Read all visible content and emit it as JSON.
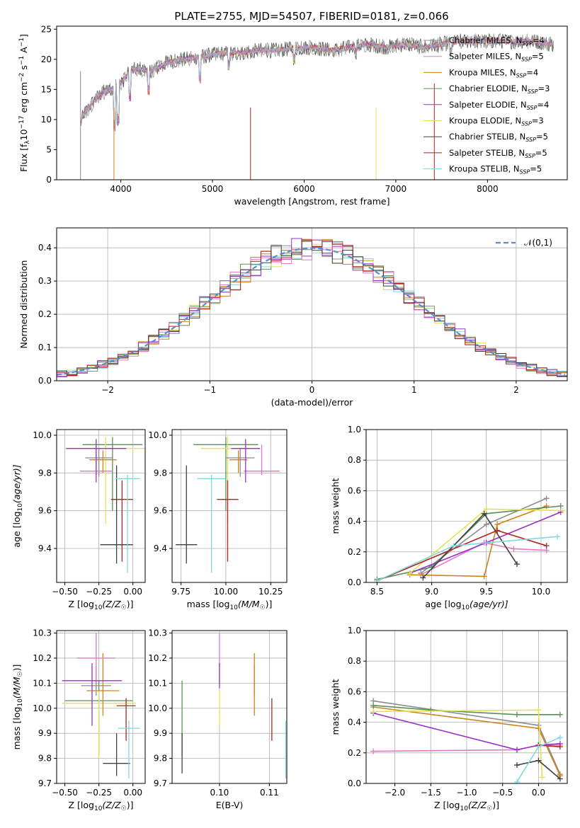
{
  "figure": {
    "title": "PLATE=2755, MJD=54507, FIBERID=0181, z=0.066"
  },
  "series_styles": [
    {
      "label_main": "Chabrier MILES",
      "nssp": "4",
      "color": "#8c8c8c"
    },
    {
      "label_main": "Salpeter MILES",
      "nssp": "5",
      "color": "#e377c2"
    },
    {
      "label_main": "Kroupa MILES",
      "nssp": "4",
      "color": "#d0821a"
    },
    {
      "label_main": "Chabrier ELODIE",
      "nssp": "3",
      "color": "#5a8f5a"
    },
    {
      "label_main": "Salpeter ELODIE",
      "nssp": "4",
      "color": "#9b30c8"
    },
    {
      "label_main": "Kroupa ELODIE",
      "nssp": "3",
      "color": "#e5e05a"
    },
    {
      "label_main": "Chabrier STELIB",
      "nssp": "5",
      "color": "#404040"
    },
    {
      "label_main": "Salpeter STELIB",
      "nssp": "5",
      "color": "#b22222"
    },
    {
      "label_main": "Kroupa STELIB",
      "nssp": "5",
      "color": "#7fd8e0"
    }
  ],
  "chart_data": [
    {
      "id": "spectrum",
      "type": "line",
      "xlabel": "wavelength [Angstrom, rest frame]",
      "ylabel_pre": "Flux [f",
      "ylabel_sub": "λ",
      "ylabel_mid": "10",
      "ylabel_sup1": "−17",
      "ylabel_mid2": " erg cm",
      "ylabel_sup2": "−2",
      "ylabel_mid3": " s",
      "ylabel_sup3": "−1",
      "ylabel_mid4": " A",
      "ylabel_sup4": "−1",
      "ylabel_end": "]",
      "xlim": [
        3300,
        8870
      ],
      "ylim": [
        0,
        25.5
      ],
      "xticks": [
        "4000",
        "5000",
        "6000",
        "7000",
        "8000"
      ],
      "xtick_values": [
        4000,
        5000,
        6000,
        7000,
        8000
      ],
      "yticks": [
        "0",
        "5",
        "10",
        "15",
        "20",
        "25"
      ],
      "ytick_values": [
        0,
        5,
        10,
        15,
        20,
        25
      ],
      "envelope": [
        [
          3560,
          9.5
        ],
        [
          3600,
          11
        ],
        [
          3700,
          13
        ],
        [
          3800,
          14.5
        ],
        [
          3900,
          15
        ],
        [
          4000,
          16
        ],
        [
          4100,
          18
        ],
        [
          4200,
          18.5
        ],
        [
          4300,
          18
        ],
        [
          4400,
          18.5
        ],
        [
          4500,
          19.5
        ],
        [
          4700,
          20
        ],
        [
          4900,
          20.5
        ],
        [
          5100,
          21
        ],
        [
          5300,
          21
        ],
        [
          5500,
          21.5
        ],
        [
          5700,
          21.5
        ],
        [
          5900,
          21.8
        ],
        [
          6100,
          22
        ],
        [
          6300,
          21.5
        ],
        [
          6500,
          22
        ],
        [
          6700,
          22.5
        ],
        [
          6900,
          22
        ],
        [
          7100,
          22.5
        ],
        [
          7300,
          22
        ],
        [
          7500,
          22.5
        ],
        [
          7700,
          23
        ],
        [
          7900,
          23
        ],
        [
          8100,
          23
        ],
        [
          8300,
          23
        ],
        [
          8500,
          23
        ],
        [
          8700,
          22.5
        ]
      ],
      "dips": [
        [
          3930,
          8
        ],
        [
          3970,
          9
        ],
        [
          4100,
          13
        ],
        [
          4300,
          14
        ],
        [
          4860,
          16
        ],
        [
          5175,
          18
        ],
        [
          5890,
          19
        ],
        [
          6563,
          20
        ],
        [
          7600,
          20
        ]
      ]
    },
    {
      "id": "residual_hist",
      "type": "line",
      "xlabel": "(data-model)/error",
      "ylabel": "Normed distribution",
      "legend_label": "𝒩(0,1)",
      "xlim": [
        -2.5,
        2.5
      ],
      "ylim": [
        0,
        0.46
      ],
      "xticks": [
        "−2",
        "−1",
        "0",
        "1",
        "2"
      ],
      "xtick_values": [
        -2,
        -1,
        0,
        1,
        2
      ],
      "yticks": [
        "0.0",
        "0.1",
        "0.2",
        "0.3",
        "0.4"
      ],
      "ytick_values": [
        0,
        0.1,
        0.2,
        0.3,
        0.4
      ]
    },
    {
      "id": "age_vs_Z",
      "type": "scatter",
      "xlabel_pre": "Z [log",
      "xlabel_sub": "10",
      "xlabel_post": "(Z/Z",
      "xlabel_sub2": "☉",
      "xlabel_end": ")]",
      "ylabel_pre": "age  [log",
      "ylabel_sub": "10",
      "ylabel_post": "(age/yr)]",
      "xlim": [
        -0.56,
        0.09
      ],
      "ylim": [
        9.22,
        10.03
      ],
      "xticks": [
        "−0.50",
        "−0.25",
        "0.00"
      ],
      "xtick_values": [
        -0.5,
        -0.25,
        0.0
      ],
      "yticks": [
        "9.4",
        "9.6",
        "9.8",
        "10.0"
      ],
      "ytick_values": [
        9.4,
        9.6,
        9.8,
        10.0
      ],
      "points": [
        {
          "x": -0.15,
          "y": 9.95,
          "xerr": 0.22,
          "yerr": [
            0.35,
            0.04
          ],
          "color": 3
        },
        {
          "x": -0.2,
          "y": 9.93,
          "xerr": 0.3,
          "yerr": [
            0.4,
            0.06
          ],
          "color": 5
        },
        {
          "x": -0.25,
          "y": 9.88,
          "xerr": 0.1,
          "yerr": [
            0.1,
            0.05
          ],
          "color": 0
        },
        {
          "x": -0.22,
          "y": 9.87,
          "xerr": 0.1,
          "yerr": [
            0.07,
            0.05
          ],
          "color": 2
        },
        {
          "x": -0.27,
          "y": 9.81,
          "xerr": 0.12,
          "yerr": [
            0.02,
            0.14
          ],
          "color": 1
        },
        {
          "x": -0.27,
          "y": 9.93,
          "xerr": 0.22,
          "yerr": [
            0.18,
            0.05
          ],
          "color": 4
        },
        {
          "x": -0.08,
          "y": 9.66,
          "xerr": 0.08,
          "yerr": [
            0.33,
            0.1
          ],
          "color": 7
        },
        {
          "x": -0.12,
          "y": 9.42,
          "xerr": 0.12,
          "yerr": [
            0.1,
            0.42
          ],
          "color": 6
        },
        {
          "x": -0.04,
          "y": 9.77,
          "xerr": 0.09,
          "yerr": [
            0.5,
            0.02
          ],
          "color": 8
        }
      ]
    },
    {
      "id": "age_vs_mass",
      "type": "scatter",
      "xlabel_pre": "mass [log",
      "xlabel_sub": "10",
      "xlabel_post": "(M/M",
      "xlabel_sub2": "☉",
      "xlabel_end": ")]",
      "xlim": [
        9.7,
        10.34
      ],
      "ylim": [
        9.22,
        10.03
      ],
      "xticks": [
        "9.75",
        "10.00",
        "10.25"
      ],
      "xtick_values": [
        9.75,
        10.0,
        10.25
      ],
      "yticks": [
        "9.4",
        "9.6",
        "9.8",
        "10.0"
      ],
      "ytick_values": [
        9.4,
        9.6,
        9.8,
        10.0
      ],
      "points": [
        {
          "x": 10.0,
          "y": 9.95,
          "xerr": 0.18,
          "yerr": [
            0.35,
            0.04
          ],
          "color": 3
        },
        {
          "x": 10.01,
          "y": 9.93,
          "xerr": 0.15,
          "yerr": [
            0.4,
            0.06
          ],
          "color": 5
        },
        {
          "x": 10.08,
          "y": 9.88,
          "xerr": 0.08,
          "yerr": [
            0.1,
            0.05
          ],
          "color": 0
        },
        {
          "x": 10.07,
          "y": 9.87,
          "xerr": 0.05,
          "yerr": [
            0.07,
            0.05
          ],
          "color": 2
        },
        {
          "x": 10.2,
          "y": 9.81,
          "xerr": 0.1,
          "yerr": [
            0.02,
            0.14
          ],
          "color": 1
        },
        {
          "x": 10.11,
          "y": 9.93,
          "xerr": 0.08,
          "yerr": [
            0.18,
            0.05
          ],
          "color": 4
        },
        {
          "x": 10.01,
          "y": 9.66,
          "xerr": 0.06,
          "yerr": [
            0.33,
            0.1
          ],
          "color": 7
        },
        {
          "x": 9.78,
          "y": 9.42,
          "xerr": 0.06,
          "yerr": [
            0.1,
            0.42
          ],
          "color": 6
        },
        {
          "x": 9.92,
          "y": 9.77,
          "xerr": 0.08,
          "yerr": [
            0.5,
            0.02
          ],
          "color": 8
        }
      ]
    },
    {
      "id": "weight_vs_age",
      "type": "line",
      "xlabel_pre": "age  [log",
      "xlabel_sub": "10",
      "xlabel_post": "(age/yr)]",
      "ylabel": "mass weight",
      "xlim": [
        8.4,
        10.24
      ],
      "ylim": [
        0,
        1.0
      ],
      "xticks": [
        "8.5",
        "9.0",
        "9.5",
        "10.0"
      ],
      "xtick_values": [
        8.5,
        9.0,
        9.5,
        10.0
      ],
      "yticks": [
        "0.0",
        "0.2",
        "0.4",
        "0.6",
        "0.8",
        "1.0"
      ],
      "ytick_values": [
        0,
        0.2,
        0.4,
        0.6,
        0.8,
        1.0
      ],
      "series": [
        {
          "color": 0,
          "x": [
            8.9,
            9.5,
            10.05
          ],
          "y": [
            0.06,
            0.38,
            0.55
          ]
        },
        {
          "color": 1,
          "x": [
            8.9,
            9.48,
            9.75,
            10.05
          ],
          "y": [
            0.05,
            0.26,
            0.22,
            0.21
          ]
        },
        {
          "color": 2,
          "x": [
            8.8,
            9.48,
            9.6,
            10.05
          ],
          "y": [
            0.05,
            0.04,
            0.38,
            0.5
          ]
        },
        {
          "color": 3,
          "x": [
            8.5,
            9.0,
            9.5,
            10.18
          ],
          "y": [
            0.02,
            0.1,
            0.45,
            0.5
          ]
        },
        {
          "color": 4,
          "x": [
            8.8,
            9.5,
            10.18
          ],
          "y": [
            0.06,
            0.26,
            0.46
          ]
        },
        {
          "color": 5,
          "x": [
            8.8,
            9.5,
            10.2
          ],
          "y": [
            0.06,
            0.48,
            0.47
          ]
        },
        {
          "color": 6,
          "x": [
            8.92,
            9.48,
            9.78
          ],
          "y": [
            0.03,
            0.45,
            0.12
          ]
        },
        {
          "color": 7,
          "x": [
            8.5,
            9.6,
            10.05
          ],
          "y": [
            0.01,
            0.34,
            0.24
          ]
        },
        {
          "color": 8,
          "x": [
            8.5,
            9.2,
            10.15
          ],
          "y": [
            0.01,
            0.24,
            0.3
          ]
        }
      ]
    },
    {
      "id": "mass_vs_Z",
      "type": "scatter",
      "xlabel_pre": "Z [log",
      "xlabel_sub": "10",
      "xlabel_post": "(Z/Z",
      "xlabel_sub2": "☉",
      "xlabel_end": ")]",
      "ylabel_pre": "mass [log",
      "ylabel_sub": "10",
      "ylabel_post": "(M/M",
      "ylabel_sub2": "☉",
      "ylabel_end": ")]",
      "xlim": [
        -0.56,
        0.09
      ],
      "ylim": [
        9.7,
        10.31
      ],
      "xticks": [
        "−0.50",
        "−0.25",
        "0.00"
      ],
      "xtick_values": [
        -0.5,
        -0.25,
        0.0
      ],
      "yticks": [
        "9.7",
        "9.8",
        "9.9",
        "10.0",
        "10.1",
        "10.2",
        "10.3"
      ],
      "ytick_values": [
        9.7,
        9.8,
        9.9,
        10.0,
        10.1,
        10.2,
        10.3
      ],
      "points": [
        {
          "x": -0.25,
          "y": 10.03,
          "xerr": 0.25,
          "yerr": [
            0.22,
            0.08
          ],
          "color": 3
        },
        {
          "x": -0.25,
          "y": 10.02,
          "xerr": 0.27,
          "yerr": [
            0.22,
            0.05
          ],
          "color": 5
        },
        {
          "x": -0.27,
          "y": 10.09,
          "xerr": 0.11,
          "yerr": [
            0.04,
            0.08
          ],
          "color": 0
        },
        {
          "x": -0.22,
          "y": 10.07,
          "xerr": 0.12,
          "yerr": [
            0.1,
            0.15
          ],
          "color": 2
        },
        {
          "x": -0.27,
          "y": 10.2,
          "xerr": 0.14,
          "yerr": [
            0.1,
            0.1
          ],
          "color": 1
        },
        {
          "x": -0.3,
          "y": 10.11,
          "xerr": 0.22,
          "yerr": [
            0.18,
            0.07
          ],
          "color": 4
        },
        {
          "x": -0.05,
          "y": 10.01,
          "xerr": 0.07,
          "yerr": [
            0.14,
            0.03
          ],
          "color": 7
        },
        {
          "x": -0.12,
          "y": 9.78,
          "xerr": 0.1,
          "yerr": [
            0.05,
            0.12
          ],
          "color": 6
        },
        {
          "x": -0.03,
          "y": 9.92,
          "xerr": 0.08,
          "yerr": [
            0.2,
            0.03
          ],
          "color": 8
        }
      ]
    },
    {
      "id": "mass_vs_EBV",
      "type": "scatter",
      "xlabel": "E(B-V)",
      "xlim": [
        0.0905,
        0.1135
      ],
      "ylim": [
        9.7,
        10.31
      ],
      "xticks": [
        "0.10",
        "0.11"
      ],
      "xtick_values": [
        0.1,
        0.11
      ],
      "yticks": [
        "9.7",
        "9.8",
        "9.9",
        "10.0",
        "10.1",
        "10.2",
        "10.3"
      ],
      "ytick_values": [
        9.7,
        9.8,
        9.9,
        10.0,
        10.1,
        10.2,
        10.3
      ],
      "points": [
        {
          "x": 0.0925,
          "y": 10.03,
          "yerr": [
            0.22,
            0.08
          ],
          "color": 3
        },
        {
          "x": 0.1,
          "y": 10.02,
          "yerr": [
            0.09,
            0.05
          ],
          "color": 5
        },
        {
          "x": 0.107,
          "y": 10.09,
          "yerr": [
            0.04,
            0.08
          ],
          "color": 0
        },
        {
          "x": 0.107,
          "y": 10.07,
          "yerr": [
            0.1,
            0.15
          ],
          "color": 2
        },
        {
          "x": 0.1,
          "y": 10.2,
          "yerr": [
            0.1,
            0.1
          ],
          "color": 1
        },
        {
          "x": 0.1,
          "y": 10.11,
          "yerr": [
            0.03,
            0.07
          ],
          "color": 4
        },
        {
          "x": 0.1105,
          "y": 9.95,
          "yerr": [
            0.08,
            0.09
          ],
          "color": 7
        },
        {
          "x": 0.0925,
          "y": 9.78,
          "yerr": [
            0.04,
            0.12
          ],
          "color": 6
        },
        {
          "x": 0.1133,
          "y": 9.85,
          "yerr": [
            0.13,
            0.1
          ],
          "color": 8
        }
      ]
    },
    {
      "id": "weight_vs_Z",
      "type": "line",
      "xlabel_pre": "Z [log",
      "xlabel_sub": "10",
      "xlabel_post": "(Z/Z",
      "xlabel_sub2": "☉",
      "xlabel_end": ")]",
      "ylabel": "mass weight",
      "xlim": [
        -2.4,
        0.4
      ],
      "ylim": [
        0,
        1.0
      ],
      "xticks": [
        "−2.0",
        "−1.5",
        "−1.0",
        "−0.5",
        "0.0"
      ],
      "xtick_values": [
        -2.0,
        -1.5,
        -1.0,
        -0.5,
        0.0
      ],
      "yticks": [
        "0.0",
        "0.2",
        "0.4",
        "0.6",
        "0.8",
        "1.0"
      ],
      "ytick_values": [
        0,
        0.2,
        0.4,
        0.6,
        0.8,
        1.0
      ],
      "series": [
        {
          "color": 0,
          "x": [
            -2.3,
            0.0,
            0.3
          ],
          "y": [
            0.54,
            0.38,
            0.06
          ]
        },
        {
          "color": 1,
          "x": [
            -2.3,
            -0.3,
            0.0,
            0.3
          ],
          "y": [
            0.21,
            0.22,
            0.25,
            0.25
          ]
        },
        {
          "color": 2,
          "x": [
            -2.3,
            0.0,
            0.3
          ],
          "y": [
            0.5,
            0.36,
            0.05
          ]
        },
        {
          "color": 3,
          "x": [
            -2.3,
            -1.5,
            -0.3,
            0.3
          ],
          "y": [
            0.51,
            0.48,
            0.45,
            0.45
          ]
        },
        {
          "color": 4,
          "x": [
            -2.3,
            -0.3,
            0.0,
            0.3
          ],
          "y": [
            0.46,
            0.22,
            0.25,
            0.26
          ]
        },
        {
          "color": 5,
          "x": [
            -2.3,
            0.0,
            0.05
          ],
          "y": [
            0.47,
            0.48,
            0.04
          ]
        },
        {
          "color": 6,
          "x": [
            -0.3,
            0.0,
            0.3
          ],
          "y": [
            0.12,
            0.15,
            0.03
          ]
        },
        {
          "color": 7,
          "x": [
            0.0,
            0.3
          ],
          "y": [
            0.25,
            0.24
          ]
        },
        {
          "color": 8,
          "x": [
            -0.3,
            0.0,
            0.3
          ],
          "y": [
            0.01,
            0.24,
            0.3
          ]
        }
      ]
    }
  ]
}
